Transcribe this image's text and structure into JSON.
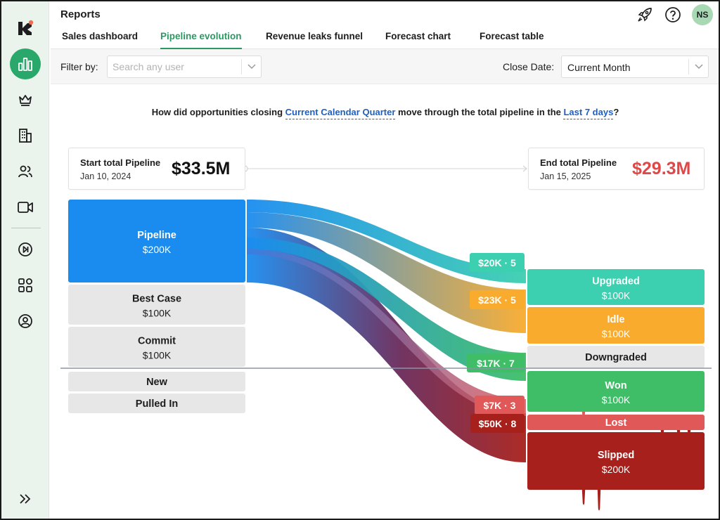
{
  "app": {
    "title": "Reports"
  },
  "user": {
    "initials": "NS"
  },
  "tabs": [
    {
      "label": "Sales dashboard",
      "active": false
    },
    {
      "label": "Pipeline evolution",
      "active": true
    },
    {
      "label": "Revenue leaks funnel",
      "active": false
    },
    {
      "label": "Forecast chart",
      "active": false
    },
    {
      "label": "Forecast table",
      "active": false
    }
  ],
  "sidebar": {
    "items": [
      {
        "name": "bar-chart-icon",
        "active": true
      },
      {
        "name": "crown-icon",
        "active": false
      },
      {
        "name": "building-icon",
        "active": false
      },
      {
        "name": "users-icon",
        "active": false
      },
      {
        "name": "video-icon",
        "active": false
      },
      {
        "name": "play-skip-icon",
        "active": false
      },
      {
        "name": "apps-grid-icon",
        "active": false
      },
      {
        "name": "user-circle-icon",
        "active": false
      }
    ],
    "expand_icon": "double-chevron-right-icon"
  },
  "filter": {
    "label": "Filter by:",
    "user_placeholder": "Search any user",
    "close_date_label": "Close Date:",
    "close_date_value": "Current Month"
  },
  "question": {
    "part1": "How did opportunities closing ",
    "link1": "Current Calendar Quarter",
    "part2": " move through the total pipeline in the ",
    "link2": "Last 7 days",
    "part3": "?"
  },
  "start_card": {
    "label": "Start total Pipeline",
    "date": "Jan 10, 2024",
    "value": "$33.5M"
  },
  "end_card": {
    "label": "End total Pipeline",
    "date": "Jan 15, 2025",
    "value": "$29.3M"
  },
  "colors": {
    "accent": "#2a9a62",
    "pipeline": "#1a8cf0",
    "upgraded": "#3ccfb0",
    "idle": "#f9ab2d",
    "won": "#3fbe67",
    "lost": "#e05858",
    "slipped": "#a8201b",
    "negative": "#e04848",
    "neutral": "#e7e7e7"
  },
  "chart_data": {
    "type": "sankey",
    "sources": [
      {
        "name": "Pipeline",
        "value": "$200K"
      },
      {
        "name": "Best Case",
        "value": "$100K"
      },
      {
        "name": "Commit",
        "value": "$100K"
      },
      {
        "name": "New",
        "value": ""
      },
      {
        "name": "Pulled In",
        "value": ""
      }
    ],
    "targets": [
      {
        "name": "Upgraded",
        "value": "$100K"
      },
      {
        "name": "Idle",
        "value": "$100K"
      },
      {
        "name": "Downgraded",
        "value": ""
      },
      {
        "name": "Won",
        "value": "$100K"
      },
      {
        "name": "Lost",
        "value": ""
      },
      {
        "name": "Slipped",
        "value": "$200K"
      }
    ],
    "flows": [
      {
        "from": "Pipeline",
        "to": "Upgraded",
        "label": "$20K · 5"
      },
      {
        "from": "Pipeline",
        "to": "Idle",
        "label": "$23K · 5"
      },
      {
        "from": "Pipeline",
        "to": "Won",
        "label": "$17K · 7"
      },
      {
        "from": "Pipeline",
        "to": "Lost",
        "label": "$7K · 3"
      },
      {
        "from": "Pipeline",
        "to": "Slipped",
        "label": "$50K · 8"
      }
    ]
  }
}
